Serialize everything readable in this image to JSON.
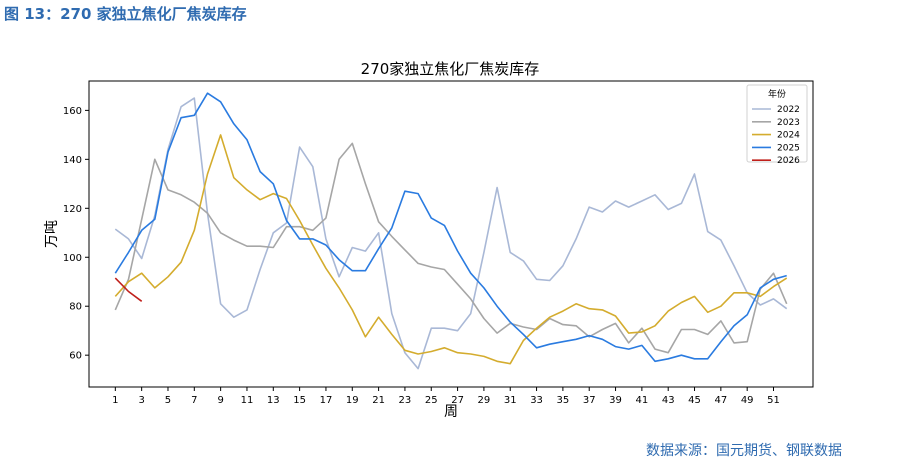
{
  "figure_caption": "图 13：270 家独立焦化厂焦炭库存",
  "source_text": "数据来源：国元期货、钢联数据",
  "chart_data": {
    "type": "line",
    "title": "270家独立焦化厂焦炭库存",
    "xlabel": "周",
    "ylabel": "万吨",
    "xlim": [
      -1,
      54
    ],
    "ylim": [
      47,
      172
    ],
    "xticks": [
      1,
      3,
      5,
      7,
      9,
      11,
      13,
      15,
      17,
      19,
      21,
      23,
      25,
      27,
      29,
      31,
      33,
      35,
      37,
      39,
      41,
      43,
      45,
      47,
      49,
      51
    ],
    "yticks": [
      60,
      80,
      100,
      120,
      140,
      160
    ],
    "grid": false,
    "legend": {
      "title": "年份",
      "position": "top-right"
    },
    "series": [
      {
        "name": "2022",
        "color": "#a9b8d6",
        "values": [
          111.5,
          107.5,
          99.5,
          117,
          144,
          161.5,
          165,
          118,
          81,
          75.5,
          78.5,
          95,
          110,
          114,
          145,
          137,
          107.5,
          92,
          104,
          102.5,
          110,
          77,
          61,
          54.5,
          71,
          71,
          70,
          77,
          102,
          128.5,
          102,
          98.5,
          91,
          90.5,
          96.5,
          107.5,
          120.5,
          118.5,
          123,
          120.5,
          123,
          125.5,
          119.5,
          122,
          134,
          110.5,
          107,
          96.5,
          85.5,
          80.5,
          83,
          79
        ]
      },
      {
        "name": "2023",
        "color": "#a6a6a6",
        "values": [
          78.5,
          91,
          115.5,
          140,
          127.5,
          125.5,
          122.5,
          118,
          110,
          107,
          104.5,
          104.5,
          104,
          112.5,
          112.5,
          111,
          116,
          140,
          146.5,
          130,
          114.5,
          108.5,
          103,
          97.5,
          96,
          95,
          89,
          83,
          75,
          69,
          73,
          71.5,
          70.5,
          75,
          72.5,
          72,
          67.5,
          70.5,
          73,
          65,
          71,
          62.5,
          61,
          70.5,
          70.5,
          68.5,
          74,
          65,
          65.5,
          87,
          93.5,
          81
        ]
      },
      {
        "name": "2024",
        "color": "#d4ac2e",
        "values": [
          84,
          90,
          93.5,
          87.5,
          92,
          98,
          111,
          134,
          150,
          132.5,
          127.5,
          123.5,
          126,
          124,
          115,
          105,
          95.5,
          87.5,
          78.5,
          67.5,
          75.5,
          68.5,
          62,
          60.5,
          61.5,
          63,
          61,
          60.5,
          59.5,
          57.5,
          56.5,
          66,
          71,
          75.5,
          78,
          81,
          79,
          78.5,
          76,
          69,
          69.5,
          72,
          78,
          81.5,
          84,
          77.5,
          80,
          85.5,
          85.5,
          84,
          88,
          91.5
        ]
      },
      {
        "name": "2025",
        "color": "#2a7be0",
        "values": [
          93.5,
          102,
          111,
          115.5,
          143,
          157,
          158,
          167,
          163.5,
          154.5,
          148,
          135,
          130,
          115,
          107.5,
          107.5,
          105,
          99,
          94.5,
          94.5,
          103.5,
          112,
          127,
          126,
          116,
          113,
          102.5,
          93.5,
          87.5,
          80,
          73.5,
          68.5,
          63,
          64.5,
          65.5,
          66.5,
          68,
          66.5,
          63.5,
          62.5,
          64,
          57.5,
          58.5,
          60,
          58.5,
          58.5,
          65.5,
          72,
          76.5,
          87.5,
          91,
          92.5
        ]
      },
      {
        "name": "2026",
        "color": "#c0201b",
        "values": [
          91.5,
          86,
          82
        ]
      }
    ]
  }
}
